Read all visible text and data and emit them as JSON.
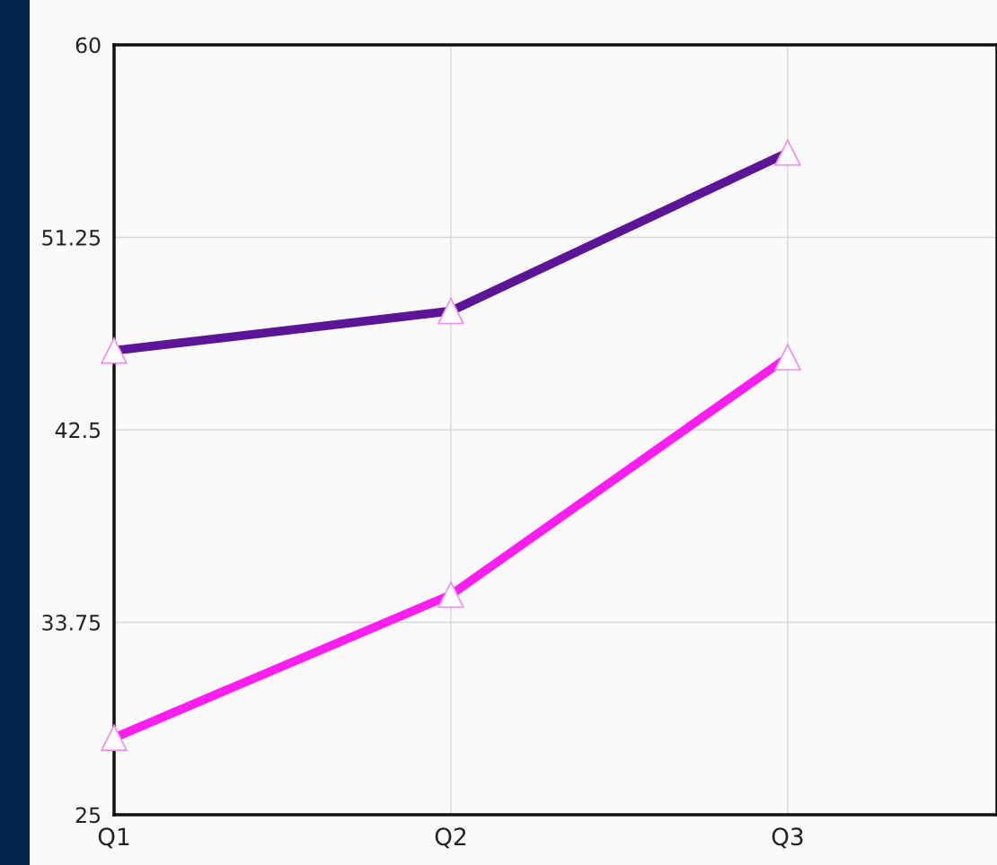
{
  "chart_data": {
    "type": "line",
    "categories": [
      "Q1",
      "Q2",
      "Q3"
    ],
    "series": [
      {
        "color": "#5b1596",
        "values": [
          46.1,
          47.9,
          55.1
        ]
      },
      {
        "color": "#ff1ef0",
        "values": [
          28.5,
          35.0,
          45.8
        ]
      }
    ],
    "ylim": [
      25,
      60
    ],
    "yticks": [
      25,
      33.75,
      42.5,
      51.25,
      60
    ],
    "grid": true,
    "marker": "triangle",
    "line_style": "solid",
    "legend": false
  }
}
